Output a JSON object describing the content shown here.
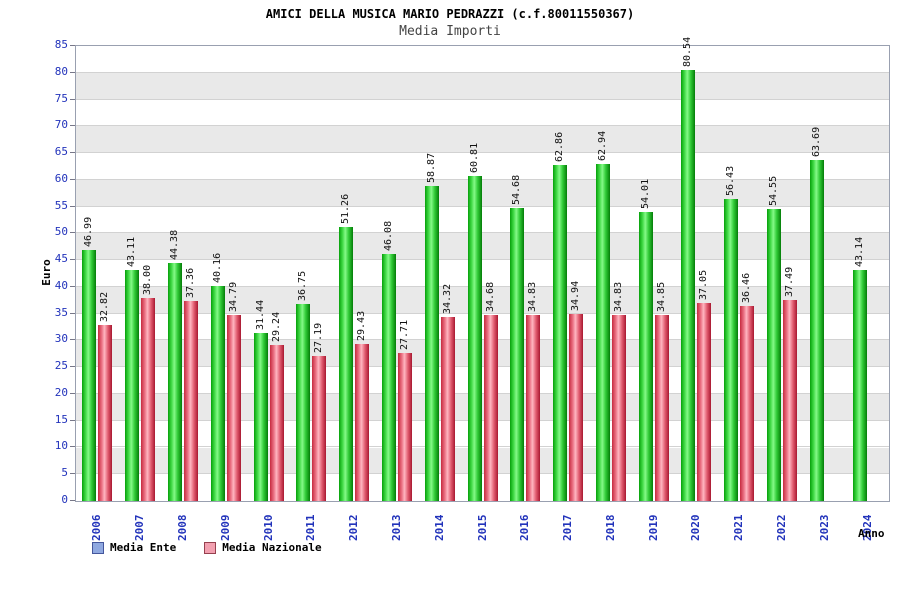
{
  "title": "AMICI DELLA MUSICA MARIO PEDRAZZI (c.f.80011550367)",
  "subtitle": "Media Importi",
  "y_axis_label": "Euro",
  "x_axis_label": "Anno",
  "legend": [
    {
      "label": "Media Ente",
      "swatch": "#8fa8e0",
      "border": "#44569c"
    },
    {
      "label": "Media Nazionale",
      "swatch": "#f2a0b0",
      "border": "#96404f"
    }
  ],
  "colors": {
    "bar_ente": "#2ecb32",
    "bar_nazionale": "#e05a6e",
    "axis_text": "#2233bb",
    "band": "#e9e9e9"
  },
  "chart_data": {
    "type": "bar",
    "title": "Media Importi",
    "xlabel": "Anno",
    "ylabel": "Euro",
    "ylim": [
      0,
      85
    ],
    "ytick_step": 5,
    "grid": true,
    "legend_position": "bottom-left",
    "categories": [
      "2006",
      "2007",
      "2008",
      "2009",
      "2010",
      "2011",
      "2012",
      "2013",
      "2014",
      "2015",
      "2016",
      "2017",
      "2018",
      "2019",
      "2020",
      "2021",
      "2022",
      "2023",
      "2024"
    ],
    "series": [
      {
        "name": "Media Ente",
        "color": "#2ecb32",
        "values": [
          46.99,
          43.11,
          44.38,
          40.16,
          31.44,
          36.75,
          51.26,
          46.08,
          58.87,
          60.81,
          54.68,
          62.86,
          62.94,
          54.01,
          80.54,
          56.43,
          54.55,
          63.69,
          43.14
        ]
      },
      {
        "name": "Media Nazionale",
        "color": "#e05a6e",
        "values": [
          32.82,
          38.0,
          37.36,
          34.79,
          29.24,
          27.19,
          29.43,
          27.71,
          34.32,
          34.68,
          34.83,
          34.94,
          34.83,
          34.85,
          37.05,
          36.46,
          37.49,
          null,
          null
        ]
      }
    ]
  }
}
